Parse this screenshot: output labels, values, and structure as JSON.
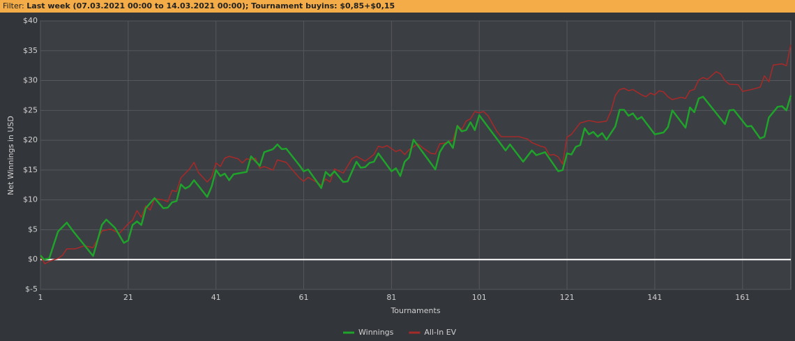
{
  "filter_label": "Filter:",
  "filter_text": "Last week (07.03.2021 00:00 to 14.03.2021 00:00); Tournament buyins: $0,85+$0,15",
  "chart_data": {
    "type": "line",
    "x_label": "Tournaments",
    "y_label": "Net Winnings in USD",
    "xlim": [
      1,
      172
    ],
    "xticks": [
      1,
      21,
      41,
      61,
      81,
      101,
      121,
      141,
      161
    ],
    "ylim": [
      -5,
      40
    ],
    "yticks": [
      {
        "value": -5,
        "label": "$-5"
      },
      {
        "value": 0,
        "label": "$0"
      },
      {
        "value": 5,
        "label": "$5"
      },
      {
        "value": 10,
        "label": "$10"
      },
      {
        "value": 15,
        "label": "$15"
      },
      {
        "value": 20,
        "label": "$20"
      },
      {
        "value": 25,
        "label": "$25"
      },
      {
        "value": 30,
        "label": "$30"
      },
      {
        "value": 35,
        "label": "$35"
      },
      {
        "value": 40,
        "label": "$40"
      }
    ],
    "grid": true,
    "zero_line": true,
    "legend": "bottom",
    "series": [
      {
        "name": "Winnings",
        "color": "#1fa32b",
        "x": [
          1,
          1.8,
          3,
          5,
          7,
          8.5,
          13,
          15,
          16,
          18,
          20,
          21,
          22,
          23,
          24,
          25,
          27,
          29,
          30,
          31,
          32,
          33,
          34,
          35,
          36,
          39,
          40,
          41,
          42,
          43,
          44,
          45,
          48,
          49,
          51,
          52,
          54,
          55,
          56,
          57,
          60,
          61,
          62,
          65,
          66,
          67,
          68,
          70,
          71,
          73,
          74,
          75,
          76,
          77,
          78,
          81,
          82,
          83,
          84,
          85,
          86,
          91,
          92,
          93,
          94,
          95,
          96,
          97,
          98,
          99,
          100,
          101,
          107,
          108,
          111,
          113,
          114,
          116,
          119,
          120,
          121,
          122,
          123,
          124,
          125,
          126,
          127,
          128,
          129,
          130,
          132,
          133,
          134,
          135,
          136,
          137,
          138,
          141,
          143,
          144,
          145,
          148,
          149,
          150,
          151,
          152,
          157,
          158,
          159,
          162,
          163,
          165,
          166,
          167,
          169,
          170,
          171,
          172
        ],
        "values": [
          0.7,
          0,
          0.2,
          4.7,
          6.2,
          4.7,
          0.6,
          5.8,
          6.7,
          5.3,
          2.8,
          3.2,
          5.8,
          6.4,
          5.8,
          8.6,
          10.3,
          8.6,
          8.7,
          9.6,
          9.8,
          12.6,
          11.9,
          12.3,
          13.3,
          10.5,
          12.2,
          15.0,
          14.0,
          14.4,
          13.3,
          14.3,
          14.7,
          17.3,
          15.7,
          18.0,
          18.5,
          19.3,
          18.5,
          18.6,
          15.8,
          14.8,
          15.1,
          12.0,
          14.7,
          14.0,
          14.8,
          13.0,
          13.1,
          16.4,
          15.4,
          15.5,
          16.2,
          16.4,
          17.8,
          14.8,
          15.3,
          14.0,
          16.4,
          17.1,
          20.1,
          15.1,
          18.0,
          19.2,
          19.8,
          18.7,
          22.4,
          21.5,
          21.7,
          23.0,
          21.7,
          24.2,
          18.3,
          19.3,
          16.4,
          18.3,
          17.5,
          18.0,
          14.8,
          15.0,
          17.8,
          17.6,
          18.9,
          19.2,
          22.0,
          21.0,
          21.4,
          20.6,
          21.2,
          20.1,
          22.3,
          25.1,
          25.1,
          24.1,
          24.5,
          23.5,
          23.9,
          21.0,
          21.3,
          22.2,
          25.0,
          22.1,
          25.5,
          24.7,
          27.0,
          27.3,
          22.7,
          25.0,
          25.1,
          22.3,
          22.4,
          20.3,
          20.6,
          23.8,
          25.6,
          25.7,
          25.0,
          27.5
        ]
      },
      {
        "name": "All-In EV",
        "color": "#a52a2a",
        "x": [
          1,
          2,
          3,
          5,
          6,
          7,
          9,
          11,
          13,
          15,
          17,
          19,
          21,
          22,
          23,
          24,
          25,
          26,
          27,
          29,
          30,
          31,
          32,
          33,
          35,
          36,
          37,
          39,
          40,
          41,
          42,
          43,
          44,
          46,
          47,
          48,
          49,
          50,
          51,
          52,
          54,
          55,
          57,
          58,
          60,
          61,
          62,
          65,
          66,
          67,
          68,
          70,
          72,
          73,
          75,
          77,
          78,
          79,
          80,
          82,
          83,
          84,
          85,
          87,
          88,
          90,
          91,
          92,
          93,
          95,
          96,
          97,
          98,
          99,
          100,
          101,
          102,
          103,
          105,
          106,
          110,
          112,
          113,
          115,
          116,
          117,
          118,
          119,
          120,
          121,
          122,
          124,
          126,
          128,
          130,
          131,
          132,
          133,
          134,
          135,
          136,
          138,
          139,
          140,
          141,
          142,
          143,
          144,
          145,
          147,
          148,
          149,
          150,
          151,
          152,
          153,
          155,
          156,
          157,
          158,
          160,
          161,
          163,
          165,
          166,
          167,
          168,
          170,
          171,
          172
        ],
        "values": [
          0.5,
          -0.7,
          -0.3,
          0.2,
          0.7,
          1.8,
          1.8,
          2.3,
          2.0,
          4.8,
          5.1,
          4.4,
          6.0,
          6.6,
          8.2,
          7.1,
          9.0,
          8.3,
          10.2,
          10.0,
          9.7,
          11.6,
          11.4,
          13.7,
          15.2,
          16.3,
          14.6,
          13.0,
          13.8,
          16.2,
          15.6,
          17.0,
          17.3,
          16.9,
          16.2,
          16.9,
          16.7,
          17.0,
          15.3,
          15.6,
          15.0,
          16.7,
          16.3,
          15.4,
          13.7,
          13.1,
          13.8,
          12.5,
          13.5,
          13.0,
          15.2,
          14.5,
          16.9,
          17.3,
          16.5,
          17.6,
          19.0,
          18.8,
          19.1,
          18.1,
          18.4,
          17.6,
          18.4,
          19.4,
          18.8,
          17.8,
          17.7,
          19.4,
          19.5,
          20.0,
          22.5,
          21.8,
          23.2,
          23.6,
          24.8,
          24.6,
          24.8,
          24.1,
          21.5,
          20.6,
          20.6,
          20.2,
          19.6,
          19.0,
          18.8,
          17.5,
          17.6,
          17.2,
          16.0,
          20.5,
          21.0,
          22.9,
          23.3,
          23.0,
          23.2,
          24.8,
          27.5,
          28.5,
          28.7,
          28.3,
          28.5,
          27.6,
          27.3,
          27.9,
          27.6,
          28.3,
          28.1,
          27.3,
          26.8,
          27.2,
          27.0,
          28.3,
          28.5,
          30.1,
          30.5,
          30.2,
          31.5,
          31.1,
          30.0,
          29.4,
          29.3,
          28.2,
          28.5,
          28.9,
          30.8,
          29.8,
          32.6,
          32.8,
          32.5,
          36.0
        ]
      }
    ]
  }
}
